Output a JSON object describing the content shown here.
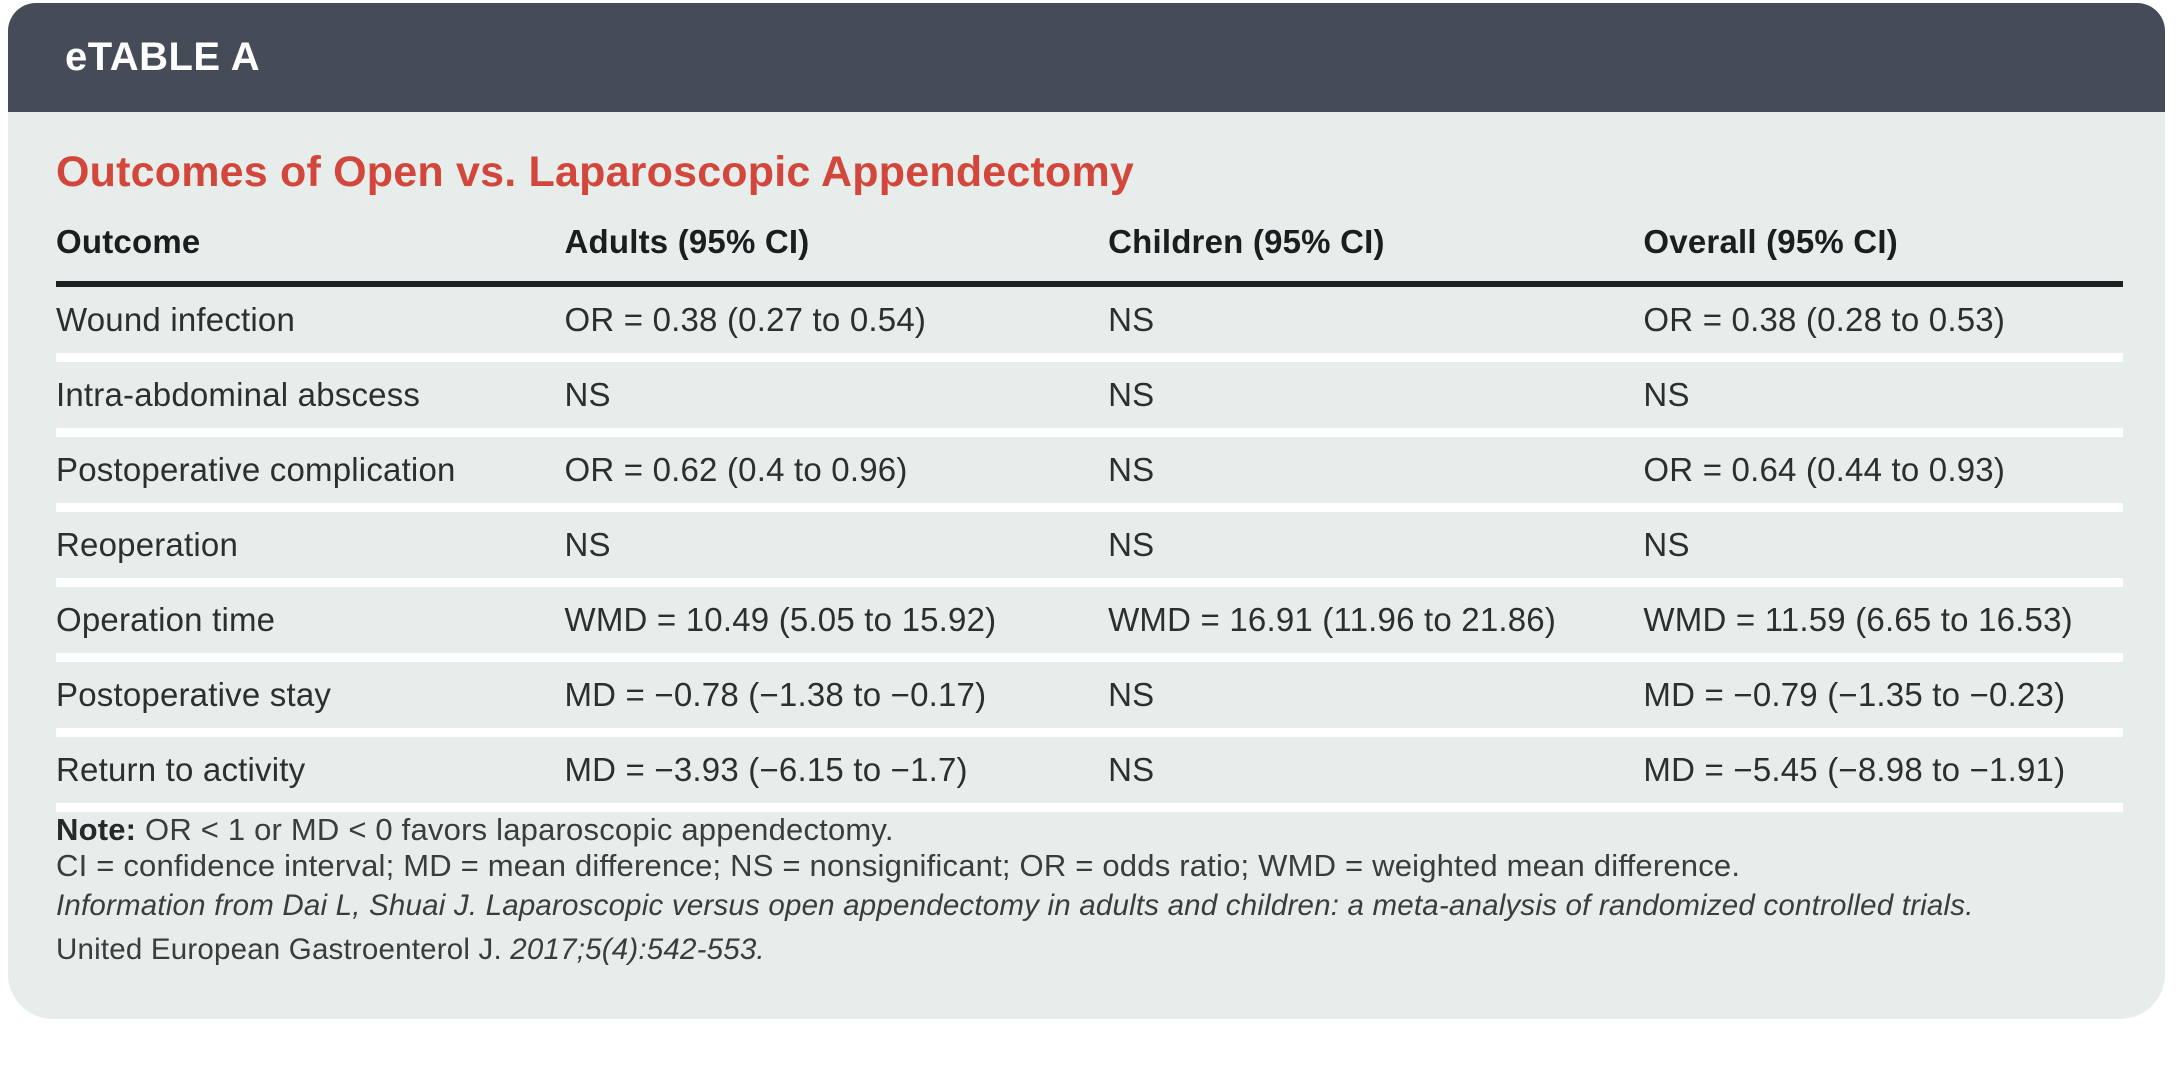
{
  "header": {
    "tag": "eTABLE A"
  },
  "table": {
    "title": "Outcomes of Open vs. Laparoscopic Appendectomy",
    "columns": [
      "Outcome",
      "Adults (95% CI)",
      "Children (95% CI)",
      "Overall (95% CI)"
    ],
    "rows": [
      {
        "outcome": "Wound infection",
        "adults": "OR = 0.38 (0.27 to 0.54)",
        "children": "NS",
        "overall": "OR = 0.38 (0.28 to 0.53)"
      },
      {
        "outcome": "Intra-abdominal abscess",
        "adults": "NS",
        "children": "NS",
        "overall": "NS"
      },
      {
        "outcome": "Postoperative complication",
        "adults": "OR = 0.62 (0.4 to 0.96)",
        "children": "NS",
        "overall": "OR = 0.64 (0.44 to 0.93)"
      },
      {
        "outcome": "Reoperation",
        "adults": "NS",
        "children": "NS",
        "overall": "NS"
      },
      {
        "outcome": "Operation time",
        "adults": "WMD = 10.49 (5.05 to 15.92)",
        "children": "WMD = 16.91 (11.96 to 21.86)",
        "overall": "WMD = 11.59 (6.65 to 16.53)"
      },
      {
        "outcome": "Postoperative stay",
        "adults": "MD = −0.78 (−1.38 to −0.17)",
        "children": "NS",
        "overall": "MD = −0.79 (−1.35 to −0.23)"
      },
      {
        "outcome": "Return to activity",
        "adults": "MD = −3.93 (−6.15 to −1.7)",
        "children": "NS",
        "overall": "MD = −5.45 (−8.98 to −1.91)"
      }
    ]
  },
  "notes": {
    "note_label": "Note:",
    "note_text": " OR < 1 or MD < 0 favors laparoscopic appendectomy.",
    "abbreviations": "CI = confidence interval; MD = mean difference; NS = nonsignificant; OR = odds ratio; WMD = weighted mean difference.",
    "citation_line1": "Information from Dai L, Shuai J. Laparoscopic versus open appendectomy in adults and children: a meta-analysis of randomized controlled trials.",
    "citation_journal": "United European Gastroenterol J. ",
    "citation_issue": "2017;5(4):542-553."
  },
  "colors": {
    "header_bar": "#464b58",
    "panel_background": "#e6edea",
    "title_red": "#d2463c"
  }
}
